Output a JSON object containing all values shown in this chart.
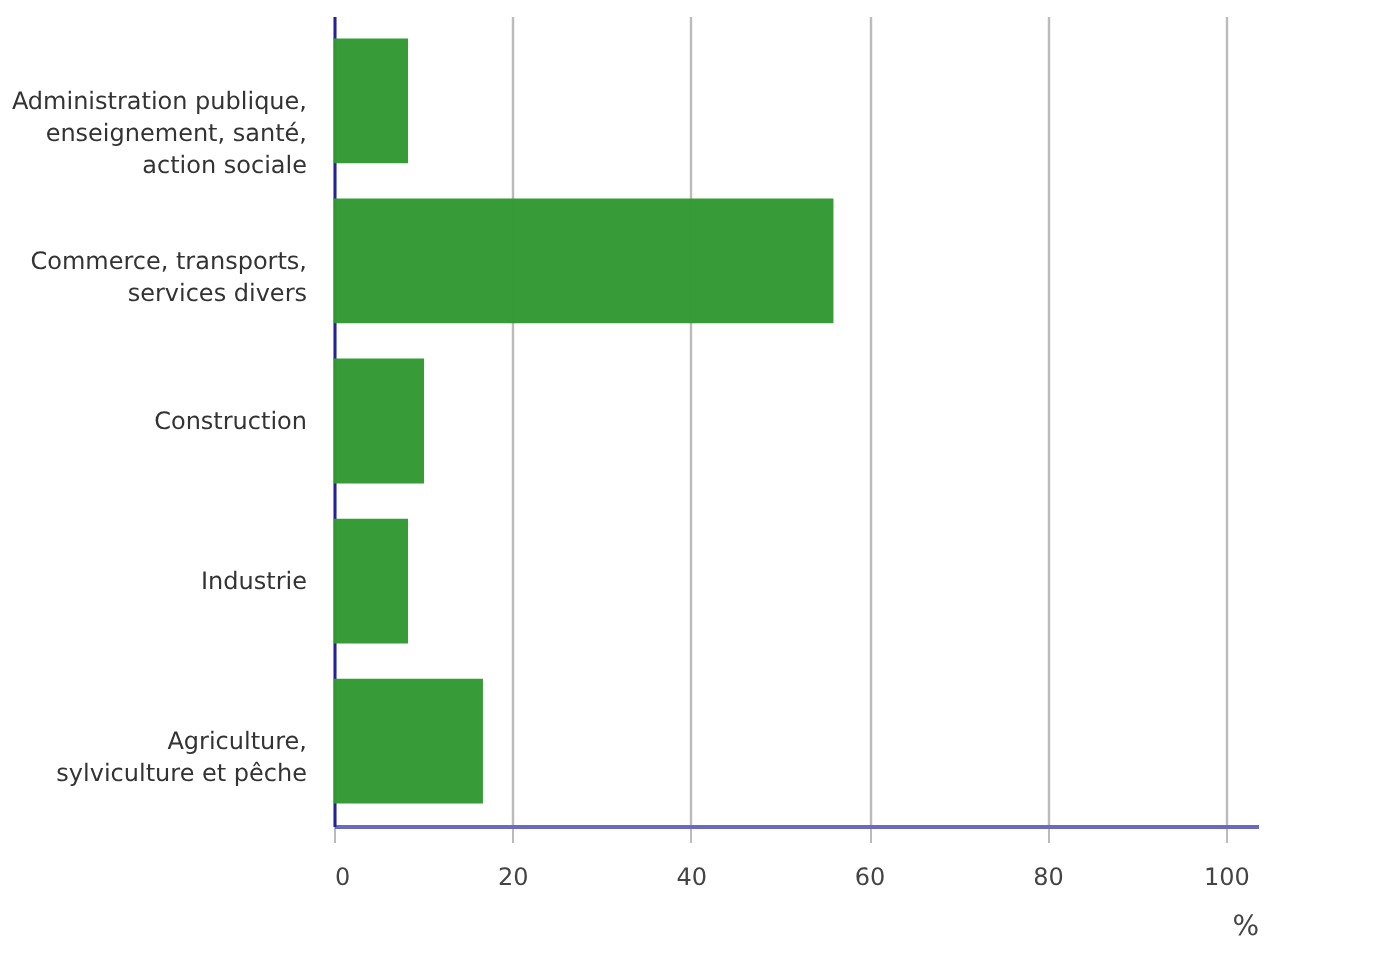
{
  "chart_data": {
    "type": "bar",
    "orientation": "horizontal",
    "categories": [
      "Administration publique,\nenseignement, santé,\naction sociale",
      "Commerce, transports,\nservices divers",
      "Construction",
      "Industrie",
      "Agriculture,\nsylviculture et pêche"
    ],
    "values": [
      8.3,
      56.0,
      10.1,
      8.3,
      16.7
    ],
    "color": "#339933",
    "xlabel": "%",
    "xlim": [
      0,
      103.6
    ],
    "xticks": [
      0,
      20,
      40,
      60,
      80,
      100
    ],
    "grid": "x"
  }
}
